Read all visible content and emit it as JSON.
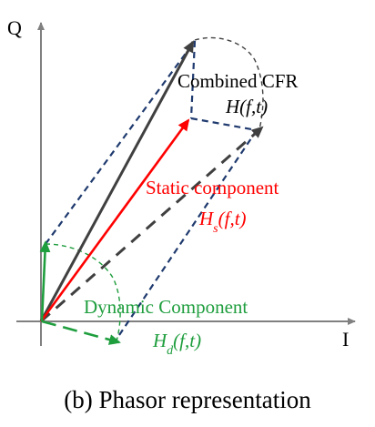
{
  "axes": {
    "x_label": "I",
    "y_label": "Q"
  },
  "labels": {
    "combined_title": "Combined CFR",
    "combined_symbol": "H(f,t)",
    "static_title": "Static component",
    "static_symbol_main": "H",
    "static_symbol_sub": "s",
    "static_symbol_args": "(f,t)",
    "dynamic_title": "Dynamic Component",
    "dynamic_symbol_main": "H",
    "dynamic_symbol_sub": "d",
    "dynamic_symbol_args": "(f,t)"
  },
  "caption": "(b) Phasor representation",
  "colors": {
    "axis": "#808080",
    "combined": "#404040",
    "static": "#ff0000",
    "dynamic": "#1f9e3e",
    "dashed_box": "#1f3a6e",
    "dashed_arrow": "#404040",
    "arc": "#404040",
    "text": "#000000"
  }
}
